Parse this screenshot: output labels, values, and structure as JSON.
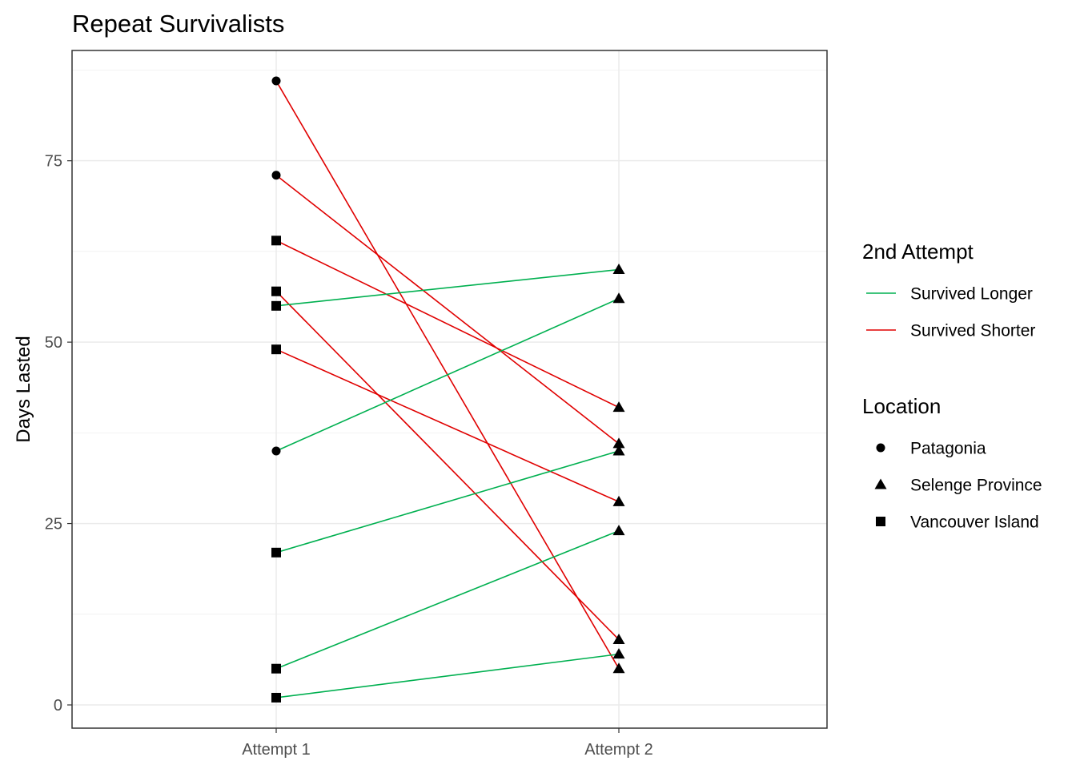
{
  "chart_data": {
    "type": "line",
    "title": "Repeat Survivalists",
    "xlabel": "",
    "ylabel": "Days Lasted",
    "categories": [
      "Attempt 1",
      "Attempt 2"
    ],
    "y_ticks": [
      "0",
      "25",
      "50",
      "75"
    ],
    "ylim": [
      -3.2,
      90.2
    ],
    "grid": true,
    "legend_position": "right",
    "colors": {
      "Survived Longer": "#00b050",
      "Survived Shorter": "#e00000",
      "panel_border": "#333333",
      "grid": "#ebebeb"
    },
    "legend": {
      "color_title": "2nd Attempt",
      "color_entries": [
        "Survived Longer",
        "Survived Shorter"
      ],
      "shape_title": "Location",
      "shape_entries": [
        {
          "label": "Patagonia",
          "shape": "circle"
        },
        {
          "label": "Selenge Province",
          "shape": "triangle"
        },
        {
          "label": "Vancouver Island",
          "shape": "square"
        }
      ]
    },
    "series": [
      {
        "outcome": "Survived Shorter",
        "location1": "Patagonia",
        "location2": "Selenge Province",
        "values": [
          86,
          5
        ]
      },
      {
        "outcome": "Survived Shorter",
        "location1": "Patagonia",
        "location2": "Selenge Province",
        "values": [
          73,
          36
        ]
      },
      {
        "outcome": "Survived Shorter",
        "location1": "Vancouver Island",
        "location2": "Selenge Province",
        "values": [
          64,
          41
        ]
      },
      {
        "outcome": "Survived Shorter",
        "location1": "Vancouver Island",
        "location2": "Selenge Province",
        "values": [
          57,
          9
        ]
      },
      {
        "outcome": "Survived Longer",
        "location1": "Vancouver Island",
        "location2": "Selenge Province",
        "values": [
          55,
          60
        ]
      },
      {
        "outcome": "Survived Shorter",
        "location1": "Vancouver Island",
        "location2": "Selenge Province",
        "values": [
          49,
          28
        ]
      },
      {
        "outcome": "Survived Longer",
        "location1": "Patagonia",
        "location2": "Selenge Province",
        "values": [
          35,
          56
        ]
      },
      {
        "outcome": "Survived Longer",
        "location1": "Vancouver Island",
        "location2": "Selenge Province",
        "values": [
          21,
          35
        ]
      },
      {
        "outcome": "Survived Longer",
        "location1": "Vancouver Island",
        "location2": "Selenge Province",
        "values": [
          5,
          24
        ]
      },
      {
        "outcome": "Survived Longer",
        "location1": "Vancouver Island",
        "location2": "Selenge Province",
        "values": [
          1,
          7
        ]
      }
    ]
  }
}
